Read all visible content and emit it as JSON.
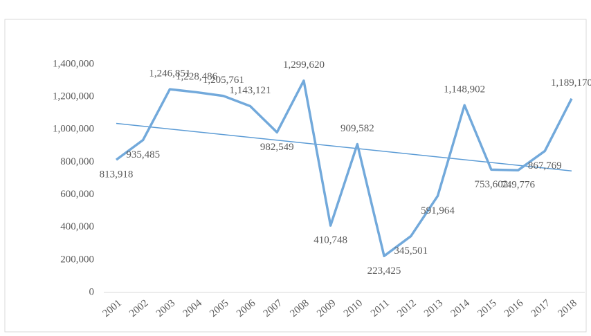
{
  "chart_data": {
    "type": "line",
    "categories": [
      "2001",
      "2002",
      "2003",
      "2004",
      "2005",
      "2006",
      "2007",
      "2008",
      "2009",
      "2010",
      "2011",
      "2012",
      "2013",
      "2014",
      "2015",
      "2016",
      "2017",
      "2018"
    ],
    "values": [
      813918,
      935485,
      1246851,
      1228486,
      1205761,
      1143121,
      982549,
      1299620,
      410748,
      909582,
      223425,
      345501,
      591964,
      1148902,
      753602,
      749776,
      867769,
      1189170
    ],
    "value_labels": [
      "813,918",
      "935,485",
      "1,246,851",
      "1,228,486",
      "1,205,761",
      "1,143,121",
      "982,549",
      "1,299,620",
      "410,748",
      "909,582",
      "223,425",
      "345,501",
      "591,964",
      "1,148,902",
      "753,602",
      "749,776",
      "867,769",
      "1,189,170"
    ],
    "color": "#72a9db",
    "trendline": "linear",
    "ylim": [
      0,
      1400000
    ],
    "yticks": [
      {
        "value": 0,
        "label": "0"
      },
      {
        "value": 200000,
        "label": "200,000"
      },
      {
        "value": 400000,
        "label": "400,000"
      },
      {
        "value": 600000,
        "label": "600,000"
      },
      {
        "value": 800000,
        "label": "800,000"
      },
      {
        "value": 1000000,
        "label": "1,000,000"
      },
      {
        "value": 1200000,
        "label": "1,200,000"
      },
      {
        "value": 1400000,
        "label": "1,400,000"
      }
    ],
    "grid": false
  }
}
